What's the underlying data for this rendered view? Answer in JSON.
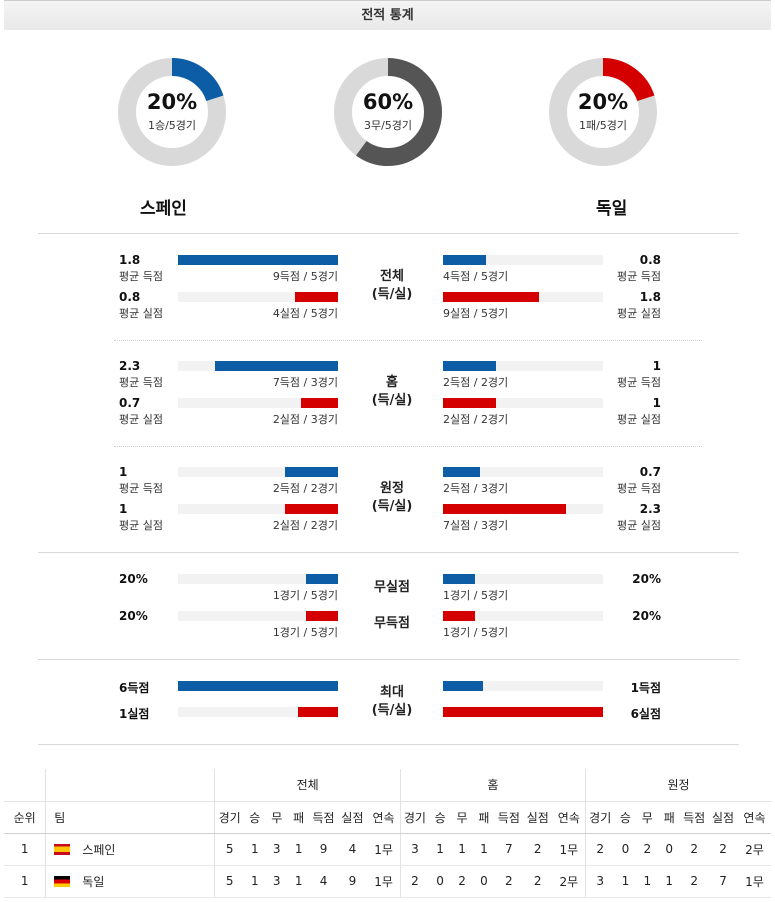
{
  "title": "전적 통계",
  "colors": {
    "home": "#0c5da5",
    "away": "#d40000",
    "draw": "#555555",
    "ring": "#d9d9d9"
  },
  "summary": [
    {
      "pct": "20%",
      "label": "1승/5경기",
      "fraction": 0.2,
      "color": "#0c5da5"
    },
    {
      "pct": "60%",
      "label": "3무/5경기",
      "fraction": 0.6,
      "color": "#555555"
    },
    {
      "pct": "20%",
      "label": "1패/5경기",
      "fraction": 0.2,
      "color": "#d40000"
    }
  ],
  "teams": {
    "home": "스페인",
    "away": "독일"
  },
  "sections": {
    "overall": {
      "title": "전체\n(득/실)",
      "home_scored": {
        "value": "1.8",
        "label": "평균 득점",
        "caption": "9득점 / 5경기",
        "fill": 1.0
      },
      "home_conceded": {
        "value": "0.8",
        "label": "평균 실점",
        "caption": "4실점 / 5경기",
        "fill": 0.27
      },
      "away_scored": {
        "value": "0.8",
        "label": "평균 득점",
        "caption": "4득점 / 5경기",
        "fill": 0.27
      },
      "away_conceded": {
        "value": "1.8",
        "label": "평균 실점",
        "caption": "9실점 / 5경기",
        "fill": 0.6
      }
    },
    "home": {
      "title": "홈\n(득/실)",
      "home_scored": {
        "value": "2.3",
        "label": "평균 득점",
        "caption": "7득점 / 3경기",
        "fill": 0.77
      },
      "home_conceded": {
        "value": "0.7",
        "label": "평균 실점",
        "caption": "2실점 / 3경기",
        "fill": 0.23
      },
      "away_scored": {
        "value": "1",
        "label": "평균 득점",
        "caption": "2득점 / 2경기",
        "fill": 0.33
      },
      "away_conceded": {
        "value": "1",
        "label": "평균 실점",
        "caption": "2실점 / 2경기",
        "fill": 0.33
      }
    },
    "away": {
      "title": "원정\n(득/실)",
      "home_scored": {
        "value": "1",
        "label": "평균 득점",
        "caption": "2득점 / 2경기",
        "fill": 0.33
      },
      "home_conceded": {
        "value": "1",
        "label": "평균 실점",
        "caption": "2실점 / 2경기",
        "fill": 0.33
      },
      "away_scored": {
        "value": "0.7",
        "label": "평균 득점",
        "caption": "2득점 / 3경기",
        "fill": 0.23
      },
      "away_conceded": {
        "value": "2.3",
        "label": "평균 실점",
        "caption": "7실점 / 3경기",
        "fill": 0.77
      }
    },
    "clean": {
      "title1": "무실점",
      "title2": "무득점",
      "home_clean": {
        "value": "20%",
        "caption": "1경기 / 5경기",
        "fill": 0.2
      },
      "home_blank": {
        "value": "20%",
        "caption": "1경기 / 5경기",
        "fill": 0.2
      },
      "away_clean": {
        "value": "20%",
        "caption": "1경기 / 5경기",
        "fill": 0.2
      },
      "away_blank": {
        "value": "20%",
        "caption": "1경기 / 5경기",
        "fill": 0.2
      }
    },
    "max": {
      "title": "최대\n(득/실)",
      "home_scored": {
        "value": "6득점",
        "fill": 1.0
      },
      "home_conceded": {
        "value": "1실점",
        "fill": 0.25
      },
      "away_scored": {
        "value": "1득점",
        "fill": 0.25
      },
      "away_conceded": {
        "value": "6실점",
        "fill": 1.0
      }
    }
  },
  "table": {
    "groups": [
      "전체",
      "홈",
      "원정"
    ],
    "rank_header": "순위",
    "team_header": "팀",
    "stat_headers": [
      "경기",
      "승",
      "무",
      "패",
      "득점",
      "실점",
      "연속"
    ],
    "rows": [
      {
        "rank": "1",
        "team": "스페인",
        "flag": "es",
        "overall": [
          "5",
          "1",
          "3",
          "1",
          "9",
          "4",
          "1무"
        ],
        "home": [
          "3",
          "1",
          "1",
          "1",
          "7",
          "2",
          "1무"
        ],
        "away": [
          "2",
          "0",
          "2",
          "0",
          "2",
          "2",
          "2무"
        ]
      },
      {
        "rank": "1",
        "team": "독일",
        "flag": "de",
        "overall": [
          "5",
          "1",
          "3",
          "1",
          "4",
          "9",
          "1무"
        ],
        "home": [
          "2",
          "0",
          "2",
          "0",
          "2",
          "2",
          "2무"
        ],
        "away": [
          "3",
          "1",
          "1",
          "1",
          "2",
          "7",
          "1무"
        ]
      }
    ]
  }
}
